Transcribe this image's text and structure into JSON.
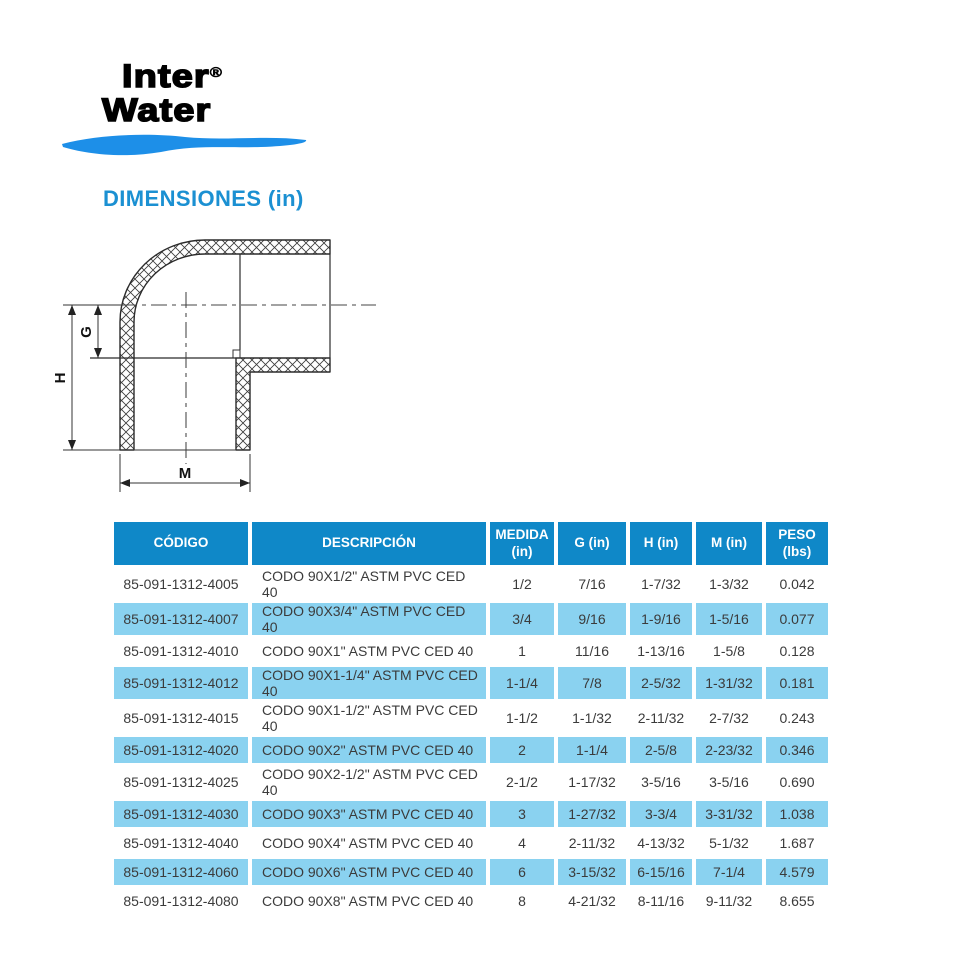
{
  "brand": {
    "name_line1": "Inter",
    "registered_mark": "®",
    "name_line2": "Water"
  },
  "section_title": "DIMENSIONES (in)",
  "drawing": {
    "labels": {
      "g": "G",
      "h": "H",
      "m": "M"
    }
  },
  "colors": {
    "header_blue": "#0f88c8",
    "row_alt_blue": "#8ad2f0",
    "title_blue": "#1b90d2",
    "swoosh_blue": "#1d8fe8"
  },
  "table": {
    "headers": [
      "CÓDIGO",
      "DESCRIPCIÓN",
      "MEDIDA\n(in)",
      "G (in)",
      "H (in)",
      "M (in)",
      "PESO\n(lbs)"
    ],
    "column_keys": [
      "codigo",
      "descripcion",
      "medida",
      "g",
      "h",
      "m",
      "peso"
    ],
    "rows": [
      {
        "codigo": "85-091-1312-4005",
        "descripcion": "CODO 90X1/2\" ASTM PVC CED 40",
        "medida": "1/2",
        "g": "7/16",
        "h": "1-7/32",
        "m": "1-3/32",
        "peso": "0.042"
      },
      {
        "codigo": "85-091-1312-4007",
        "descripcion": "CODO 90X3/4\" ASTM PVC CED 40",
        "medida": "3/4",
        "g": "9/16",
        "h": "1-9/16",
        "m": "1-5/16",
        "peso": "0.077"
      },
      {
        "codigo": "85-091-1312-4010",
        "descripcion": "CODO 90X1\" ASTM PVC CED 40",
        "medida": "1",
        "g": "11/16",
        "h": "1-13/16",
        "m": "1-5/8",
        "peso": "0.128"
      },
      {
        "codigo": "85-091-1312-4012",
        "descripcion": "CODO 90X1-1/4\" ASTM PVC CED 40",
        "medida": "1-1/4",
        "g": "7/8",
        "h": "2-5/32",
        "m": "1-31/32",
        "peso": "0.181"
      },
      {
        "codigo": "85-091-1312-4015",
        "descripcion": "CODO 90X1-1/2\" ASTM PVC CED 40",
        "medida": "1-1/2",
        "g": "1-1/32",
        "h": "2-11/32",
        "m": "2-7/32",
        "peso": "0.243"
      },
      {
        "codigo": "85-091-1312-4020",
        "descripcion": "CODO 90X2\" ASTM PVC CED 40",
        "medida": "2",
        "g": "1-1/4",
        "h": "2-5/8",
        "m": "2-23/32",
        "peso": "0.346"
      },
      {
        "codigo": "85-091-1312-4025",
        "descripcion": "CODO 90X2-1/2\" ASTM PVC CED 40",
        "medida": "2-1/2",
        "g": "1-17/32",
        "h": "3-5/16",
        "m": "3-5/16",
        "peso": "0.690"
      },
      {
        "codigo": "85-091-1312-4030",
        "descripcion": "CODO 90X3\" ASTM PVC CED 40",
        "medida": "3",
        "g": "1-27/32",
        "h": "3-3/4",
        "m": "3-31/32",
        "peso": "1.038"
      },
      {
        "codigo": "85-091-1312-4040",
        "descripcion": "CODO 90X4\" ASTM PVC CED 40",
        "medida": "4",
        "g": "2-11/32",
        "h": "4-13/32",
        "m": "5-1/32",
        "peso": "1.687"
      },
      {
        "codigo": "85-091-1312-4060",
        "descripcion": "CODO 90X6\" ASTM PVC CED 40",
        "medida": "6",
        "g": "3-15/32",
        "h": "6-15/16",
        "m": "7-1/4",
        "peso": "4.579"
      },
      {
        "codigo": "85-091-1312-4080",
        "descripcion": "CODO 90X8\" ASTM PVC CED 40",
        "medida": "8",
        "g": "4-21/32",
        "h": "8-11/16",
        "m": "9-11/32",
        "peso": "8.655"
      }
    ]
  }
}
